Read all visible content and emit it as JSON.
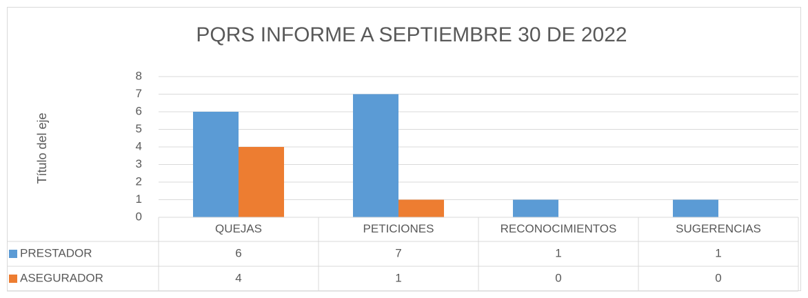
{
  "chart_data": {
    "type": "bar",
    "title": "PQRS INFORME A SEPTIEMBRE 30 DE 2022",
    "y_label": "Título del eje",
    "categories": [
      "QUEJAS",
      "PETICIONES",
      "RECONOCIMIENTOS",
      "SUGERENCIAS"
    ],
    "series": [
      {
        "name": "PRESTADOR",
        "color": "#5b9bd5",
        "values": [
          6,
          7,
          1,
          1
        ]
      },
      {
        "name": "ASEGURADOR",
        "color": "#ed7d31",
        "values": [
          4,
          1,
          0,
          0
        ]
      }
    ],
    "ylim": [
      0,
      8
    ],
    "yticks": [
      0,
      1,
      2,
      3,
      4,
      5,
      6,
      7,
      8
    ],
    "grid": true,
    "data_table": true
  }
}
